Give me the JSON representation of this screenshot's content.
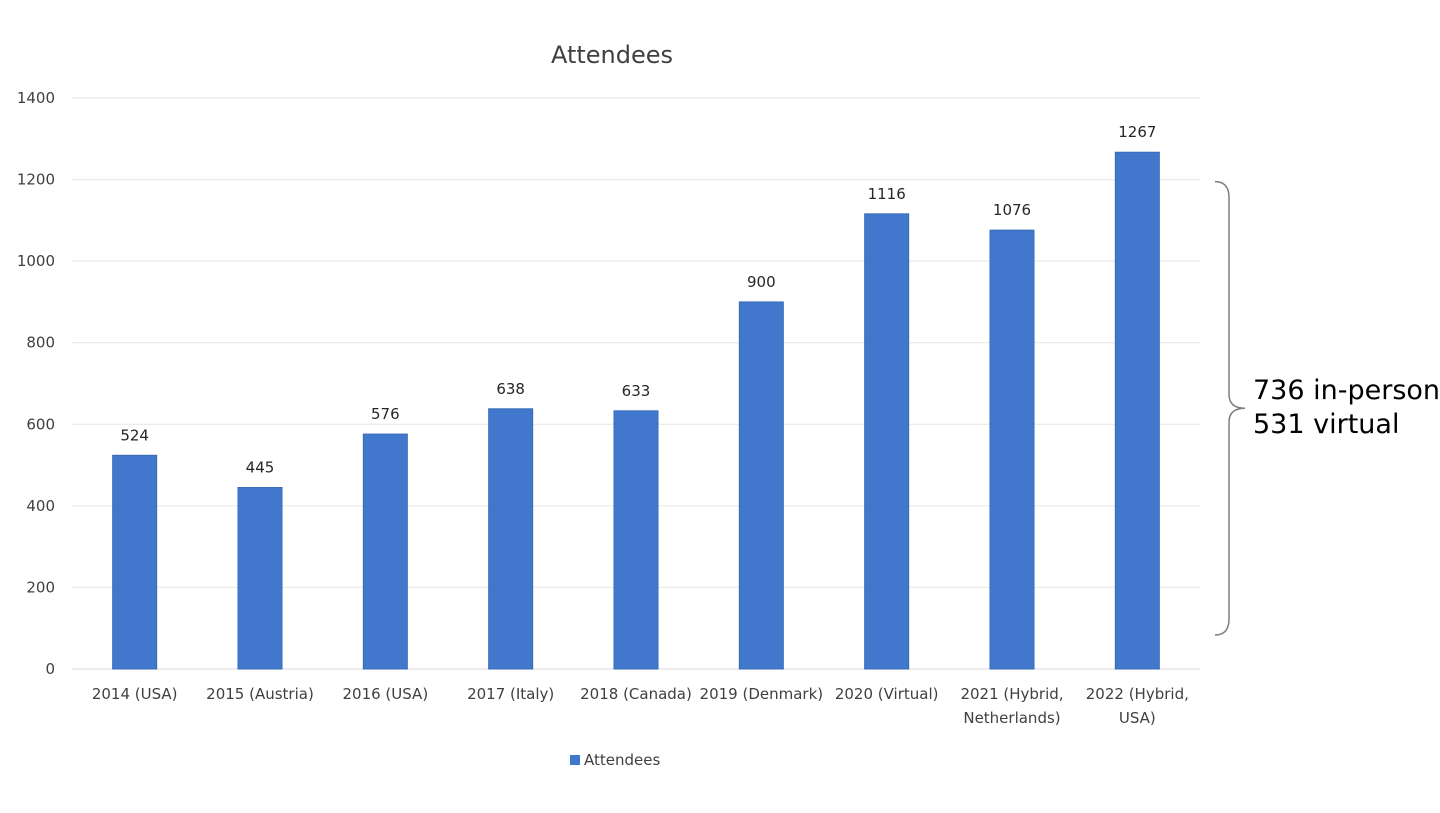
{
  "chart_data": {
    "type": "bar",
    "title": "Attendees",
    "categories": [
      [
        "2014 (USA)"
      ],
      [
        "2015 (Austria)"
      ],
      [
        "2016 (USA)"
      ],
      [
        "2017 (Italy)"
      ],
      [
        "2018 (Canada)"
      ],
      [
        "2019 (Denmark)"
      ],
      [
        "2020 (Virtual)"
      ],
      [
        "2021 (Hybrid,",
        "Netherlands)"
      ],
      [
        "2022 (Hybrid,",
        "USA)"
      ]
    ],
    "series": [
      {
        "name": "Attendees",
        "color": "#4177cc",
        "values": [
          524,
          445,
          576,
          638,
          633,
          900,
          1116,
          1076,
          1267
        ]
      }
    ],
    "ylim": [
      0,
      1400
    ],
    "yticks": [
      0,
      200,
      400,
      600,
      800,
      1000,
      1200,
      1400
    ],
    "grid": true,
    "legend_position": "bottom",
    "annotation": {
      "lines": [
        "736 in-person",
        "531 virtual"
      ],
      "bracket_span": [
        0,
        1200
      ]
    }
  }
}
